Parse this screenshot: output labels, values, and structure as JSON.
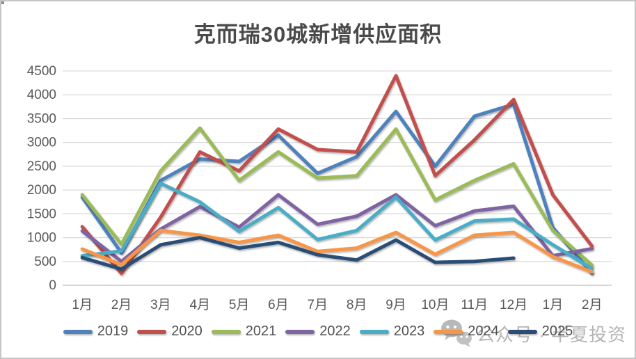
{
  "title": "克而瑞30城新增供应面积",
  "watermark": {
    "icon": "wechat-icon",
    "text": "公众号 · 半夏投资"
  },
  "chart_data": {
    "type": "line",
    "title": "克而瑞30城新增供应面积",
    "categories": [
      "1月",
      "2月",
      "3月",
      "4月",
      "5月",
      "6月",
      "7月",
      "8月",
      "9月",
      "10月",
      "11月",
      "12月",
      "1月",
      "2月"
    ],
    "series": [
      {
        "name": "2019",
        "color": "#4F81BD",
        "values": [
          1850,
          680,
          2200,
          2650,
          2600,
          3150,
          2350,
          2700,
          3650,
          2500,
          3550,
          3800,
          1210,
          250
        ]
      },
      {
        "name": "2020",
        "color": "#C0504D",
        "values": [
          1230,
          250,
          1430,
          2800,
          2400,
          3280,
          2850,
          2800,
          4400,
          2300,
          3050,
          3900,
          1900,
          820
        ]
      },
      {
        "name": "2021",
        "color": "#9BBB59",
        "values": [
          1900,
          860,
          2400,
          3300,
          2200,
          2800,
          2250,
          2300,
          3280,
          1790,
          2200,
          2550,
          1150,
          420
        ]
      },
      {
        "name": "2022",
        "color": "#8064A2",
        "values": [
          1140,
          500,
          1180,
          1650,
          1220,
          1900,
          1280,
          1450,
          1900,
          1250,
          1560,
          1660,
          620,
          770
        ]
      },
      {
        "name": "2023",
        "color": "#4BACC6",
        "values": [
          620,
          720,
          2140,
          1750,
          1130,
          1630,
          960,
          1150,
          1850,
          950,
          1350,
          1390,
          850,
          350
        ]
      },
      {
        "name": "2024",
        "color": "#F79646",
        "values": [
          760,
          430,
          1150,
          1050,
          900,
          1050,
          710,
          780,
          1110,
          650,
          1050,
          1110,
          600,
          280
        ]
      },
      {
        "name": "2025",
        "color": "#2C4D75",
        "values": [
          580,
          340,
          850,
          1000,
          780,
          900,
          640,
          530,
          950,
          480,
          500,
          570,
          null,
          null
        ]
      }
    ],
    "xlabel": "",
    "ylabel": "",
    "ylim": [
      0,
      4500
    ],
    "ytick_step": 500,
    "grid": true,
    "legend_position": "bottom"
  }
}
